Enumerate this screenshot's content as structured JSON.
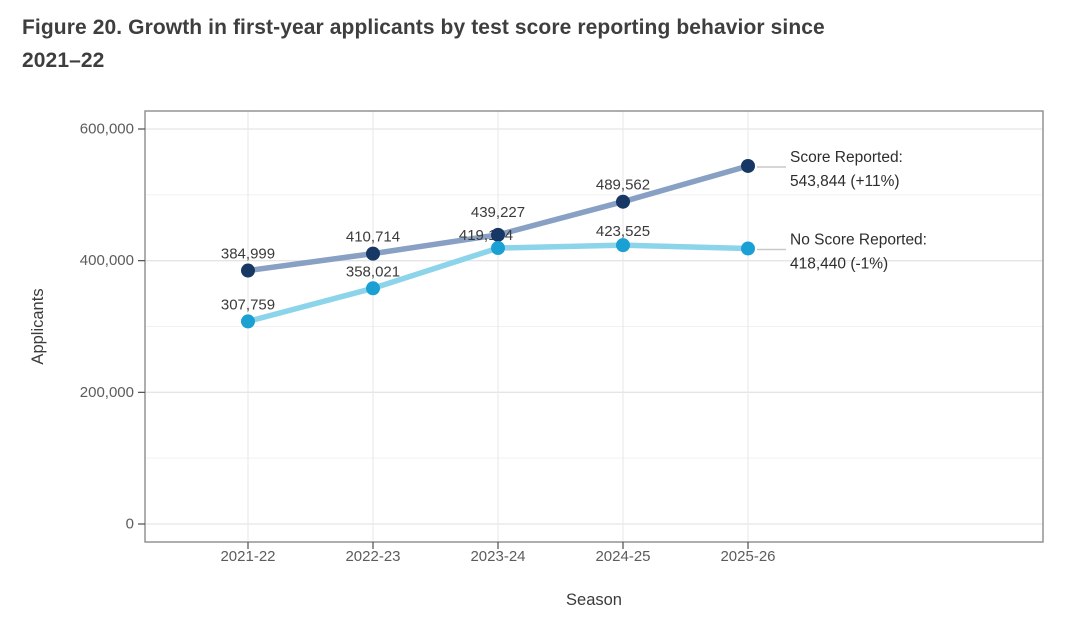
{
  "figure": {
    "title_line1": "Figure 20. Growth in first-year applicants by test score reporting behavior since",
    "title_line2": "2021–22"
  },
  "chart_data": {
    "type": "line",
    "title": "Figure 20. Growth in first-year applicants by test score reporting behavior since 2021–22",
    "xlabel": "Season",
    "ylabel": "Applicants",
    "categories": [
      "2021-22",
      "2022-23",
      "2023-24",
      "2024-25",
      "2025-26"
    ],
    "series": [
      {
        "name": "Score Reported",
        "values": [
          384999,
          410714,
          439227,
          489562,
          543844
        ],
        "point_color": "#173764",
        "line_color": "#87a0c3",
        "end_label_line1": "Score Reported:",
        "end_label_line2": "543,844 (+11%)"
      },
      {
        "name": "No Score Reported",
        "values": [
          307759,
          358021,
          419154,
          423525,
          418440
        ],
        "point_color": "#1aa0d2",
        "line_color": "#8cd4ea",
        "end_label_line1": "No Score Reported:",
        "end_label_line2": "418,440 (-1%)"
      }
    ],
    "ylim": [
      0,
      600000
    ],
    "yticks": [
      0,
      200000,
      400000,
      600000
    ],
    "ytick_labels": [
      "0",
      "200,000",
      "400,000",
      "600,000"
    ],
    "minor_yticks": [
      100000,
      300000,
      500000
    ],
    "grid": true,
    "legend_position": "right-annotations",
    "colors": {
      "grid_major": "#e5e5e5",
      "grid_minor": "#f1f1f1",
      "grid_vertical": "#e9e9e9",
      "panel_border": "#8c8c8c",
      "tick_label": "#5c5c5c",
      "axis_title": "#3b3b3b",
      "data_label": "#3b3b3b",
      "annotation_text": "#2d2d2d",
      "leader_line": "#c9c9c9",
      "title_text": "#3e3e3e"
    }
  }
}
